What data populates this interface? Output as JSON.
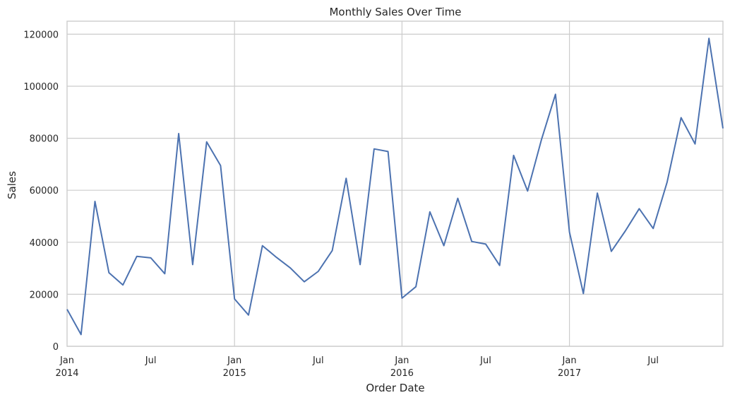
{
  "chart_data": {
    "type": "line",
    "title": "Monthly Sales Over Time",
    "xlabel": "Order Date",
    "ylabel": "Sales",
    "ylim": [
      0,
      125000
    ],
    "xlim": [
      "2014-01",
      "2017-12"
    ],
    "grid": true,
    "yticks": [
      0,
      20000,
      40000,
      60000,
      80000,
      100000,
      120000
    ],
    "ytick_labels": [
      "0",
      "20000",
      "40000",
      "60000",
      "80000",
      "100000",
      "120000"
    ],
    "xticks": [
      {
        "month": "2014-01",
        "label": "Jan",
        "year": "2014",
        "major": true
      },
      {
        "month": "2014-07",
        "label": "Jul",
        "year": "",
        "major": false
      },
      {
        "month": "2015-01",
        "label": "Jan",
        "year": "2015",
        "major": true
      },
      {
        "month": "2015-07",
        "label": "Jul",
        "year": "",
        "major": false
      },
      {
        "month": "2016-01",
        "label": "Jan",
        "year": "2016",
        "major": true
      },
      {
        "month": "2016-07",
        "label": "Jul",
        "year": "",
        "major": false
      },
      {
        "month": "2017-01",
        "label": "Jan",
        "year": "2017",
        "major": true
      },
      {
        "month": "2017-07",
        "label": "Jul",
        "year": "",
        "major": false
      }
    ],
    "color": "#4c72b0",
    "x": [
      "2014-01",
      "2014-02",
      "2014-03",
      "2014-04",
      "2014-05",
      "2014-06",
      "2014-07",
      "2014-08",
      "2014-09",
      "2014-10",
      "2014-11",
      "2014-12",
      "2015-01",
      "2015-02",
      "2015-03",
      "2015-04",
      "2015-05",
      "2015-06",
      "2015-07",
      "2015-08",
      "2015-09",
      "2015-10",
      "2015-11",
      "2015-12",
      "2016-01",
      "2016-02",
      "2016-03",
      "2016-04",
      "2016-05",
      "2016-06",
      "2016-07",
      "2016-08",
      "2016-09",
      "2016-10",
      "2016-11",
      "2016-12",
      "2017-01",
      "2017-02",
      "2017-03",
      "2017-04",
      "2017-05",
      "2017-06",
      "2017-07",
      "2017-08",
      "2017-09",
      "2017-10",
      "2017-11",
      "2017-12"
    ],
    "values": [
      14200,
      4500,
      55700,
      28300,
      23600,
      34600,
      34000,
      27900,
      81800,
      31400,
      78600,
      69500,
      18200,
      12000,
      38700,
      34200,
      30100,
      24800,
      28800,
      36800,
      64600,
      31400,
      75900,
      74900,
      18500,
      22900,
      51700,
      38700,
      56900,
      40300,
      39300,
      31100,
      73400,
      59700,
      79500,
      96900,
      43900,
      20300,
      58900,
      36500,
      44300,
      52900,
      45300,
      63100,
      87900,
      77800,
      118400,
      83800
    ]
  }
}
